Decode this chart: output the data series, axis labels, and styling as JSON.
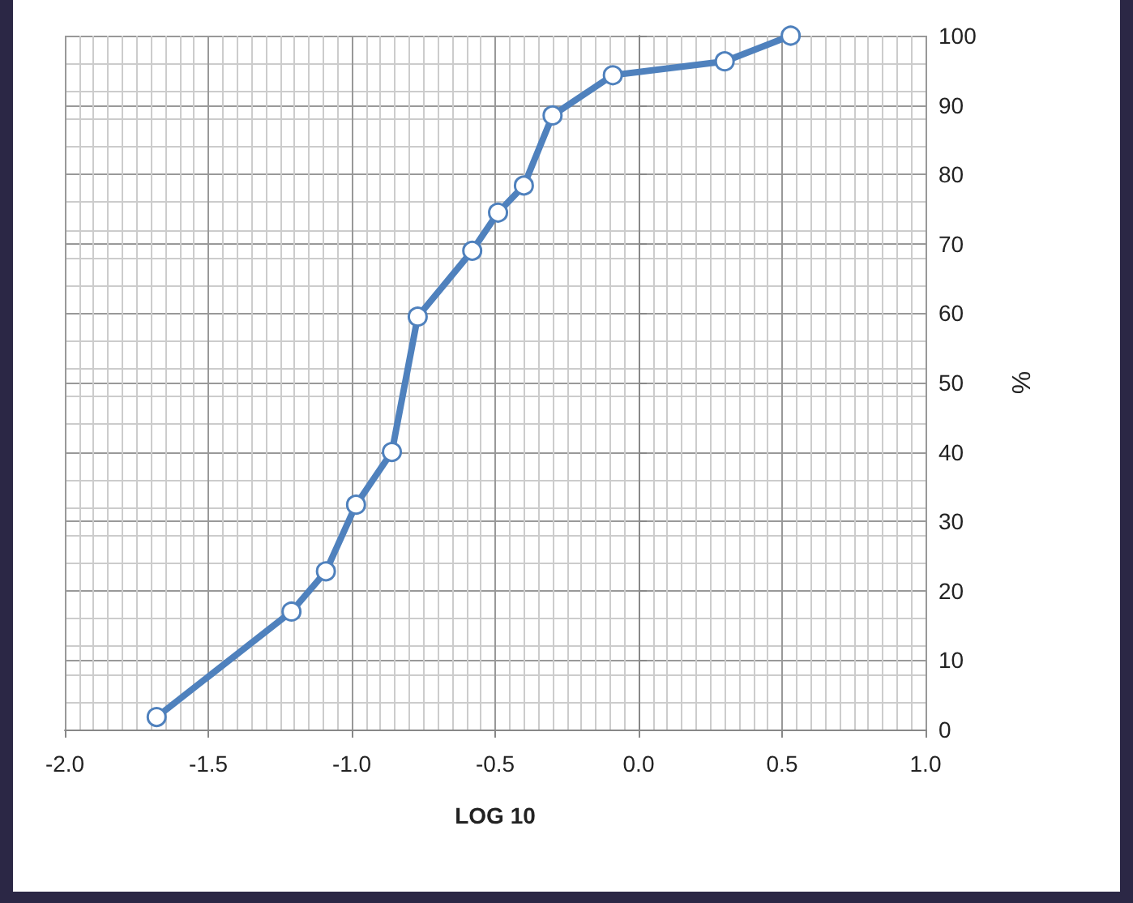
{
  "chart_data": {
    "type": "line",
    "xlabel": "LOG 10",
    "ylabel": "%",
    "x": [
      -1.68,
      -1.21,
      -1.09,
      -0.985,
      -0.86,
      -0.77,
      -0.58,
      -0.49,
      -0.4,
      -0.3,
      -0.09,
      0.3,
      0.53
    ],
    "series": [
      {
        "color": "#4f81bd",
        "values": [
          1.8,
          17,
          22.8,
          32.4,
          40,
          59.5,
          69,
          74.5,
          78.4,
          88.5,
          94.3,
          96.3,
          100
        ]
      }
    ],
    "xlim": [
      -2,
      1
    ],
    "xticks": [
      {
        "value": -2,
        "label": "-2.0"
      },
      {
        "value": -1.5,
        "label": "-1.5"
      },
      {
        "value": -1,
        "label": "-1.0"
      },
      {
        "value": -0.5,
        "label": "-0.5"
      },
      {
        "value": 0,
        "label": "0.0"
      },
      {
        "value": 0.5,
        "label": "0.5"
      },
      {
        "value": 1,
        "label": "1.0"
      }
    ],
    "ylim": [
      0,
      100
    ],
    "yticks": [
      0,
      10,
      20,
      30,
      40,
      50,
      60,
      70,
      80,
      90,
      100
    ],
    "grid": true,
    "marker": "circle",
    "line_style": "solid"
  }
}
